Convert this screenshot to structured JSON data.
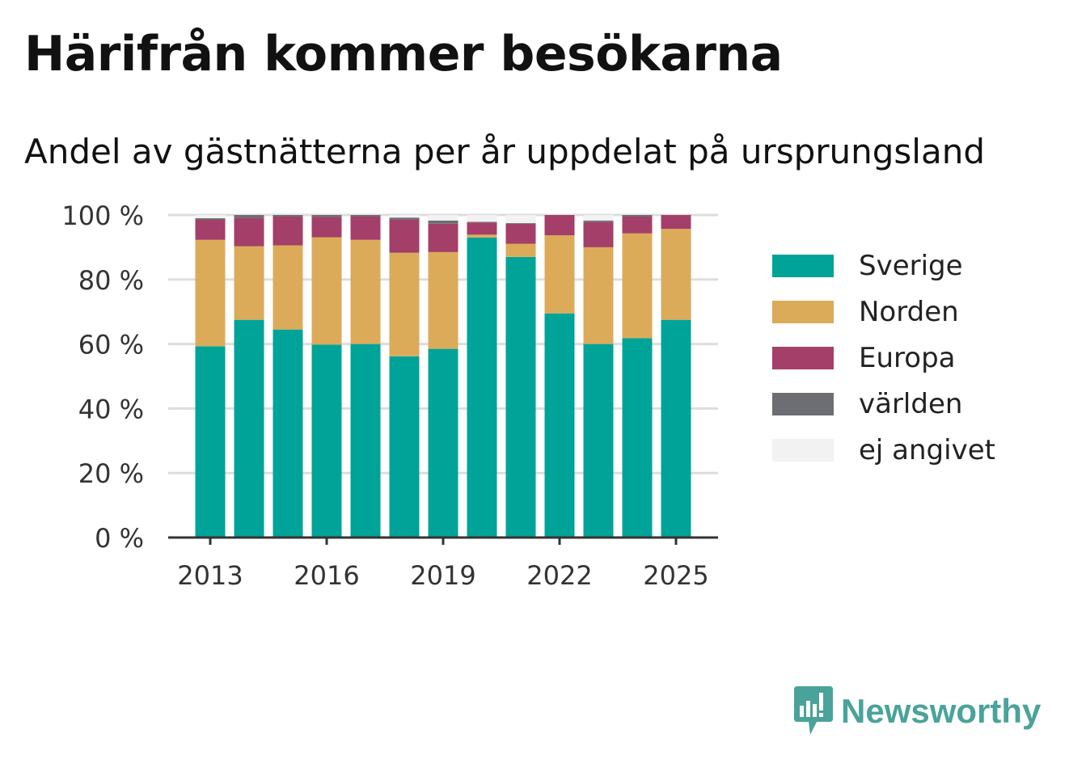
{
  "title": "Härifrån kommer besökarna",
  "subtitle": "Andel av gästnätterna per år uppdelat på ursprungsland",
  "brand": {
    "name": "Newsworthy",
    "color": "#4aa39a"
  },
  "chart_data": {
    "type": "bar",
    "stacked": true,
    "categories": [
      "2013",
      "2014",
      "2015",
      "2016",
      "2017",
      "2018",
      "2019",
      "2020",
      "2021",
      "2022",
      "2023",
      "2024",
      "2025"
    ],
    "x_tick_labels": [
      "2013",
      "2016",
      "2019",
      "2022",
      "2025"
    ],
    "y_ticks": [
      "0 %",
      "20 %",
      "40 %",
      "60 %",
      "80 %",
      "100 %"
    ],
    "ylim": [
      0,
      100
    ],
    "grid": true,
    "legend_position": "right",
    "series": [
      {
        "name": "Sverige",
        "color": "#00a398",
        "values": [
          59.3,
          67.5,
          64.5,
          59.8,
          60.0,
          56.2,
          58.5,
          93.0,
          87.0,
          69.5,
          60.0,
          61.8,
          67.5
        ]
      },
      {
        "name": "Norden",
        "color": "#dbab5a",
        "values": [
          33.0,
          22.8,
          26.1,
          33.3,
          32.3,
          32.1,
          30.0,
          0.9,
          4.1,
          24.2,
          30.0,
          32.5,
          28.2
        ]
      },
      {
        "name": "Europa",
        "color": "#a33f68",
        "values": [
          6.2,
          8.8,
          8.9,
          6.3,
          7.2,
          10.3,
          8.8,
          3.8,
          6.2,
          6.3,
          7.8,
          5.2,
          4.3
        ]
      },
      {
        "name": "världen",
        "color": "#6d6d74",
        "values": [
          0.5,
          0.9,
          0.5,
          0.6,
          0.5,
          0.6,
          1.0,
          0.2,
          0.2,
          0.0,
          0.5,
          0.5,
          0.0
        ]
      },
      {
        "name": "ej angivet",
        "color": "#f2f2f2",
        "values": [
          1.0,
          0.0,
          0.0,
          0.0,
          0.0,
          0.8,
          1.7,
          2.1,
          2.5,
          0.0,
          1.7,
          0.0,
          0.0
        ]
      }
    ]
  }
}
